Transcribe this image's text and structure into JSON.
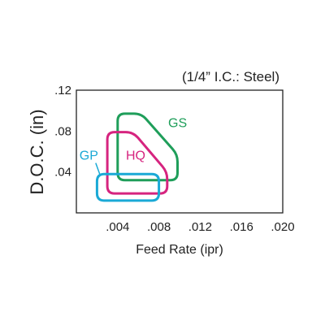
{
  "chart_data": {
    "type": "area",
    "title": "(1/4” I.C.: Steel)",
    "xlabel": "Feed Rate (ipr)",
    "ylabel": "D.O.C. (in)",
    "xlim": [
      0,
      0.02
    ],
    "ylim": [
      0,
      0.12
    ],
    "x_ticks": [
      ".004",
      ".008",
      ".012",
      ".016",
      ".020"
    ],
    "x_tick_values": [
      0.004,
      0.008,
      0.012,
      0.016,
      0.02
    ],
    "y_ticks": [
      ".04",
      ".08",
      ".12"
    ],
    "y_tick_values": [
      0.04,
      0.08,
      0.12
    ],
    "grid": false,
    "series": [
      {
        "name": "GS",
        "color": "#1f9e5a",
        "label_pos": [
          0.0089,
          0.084
        ],
        "points": [
          [
            0.004,
            0.097
          ],
          [
            0.0063,
            0.097
          ],
          [
            0.0098,
            0.057
          ],
          [
            0.0098,
            0.032
          ],
          [
            0.004,
            0.032
          ]
        ]
      },
      {
        "name": "HQ",
        "color": "#d6247f",
        "label_pos": [
          0.0048,
          0.052
        ],
        "points": [
          [
            0.003,
            0.079
          ],
          [
            0.0055,
            0.079
          ],
          [
            0.0088,
            0.04
          ],
          [
            0.0088,
            0.019
          ],
          [
            0.003,
            0.019
          ]
        ]
      },
      {
        "name": "GP",
        "color": "#1aa9d6",
        "label_pos": [
          0.0003,
          0.052
        ],
        "points": [
          [
            0.002,
            0.038
          ],
          [
            0.008,
            0.038
          ],
          [
            0.008,
            0.012
          ],
          [
            0.002,
            0.012
          ]
        ]
      }
    ]
  }
}
